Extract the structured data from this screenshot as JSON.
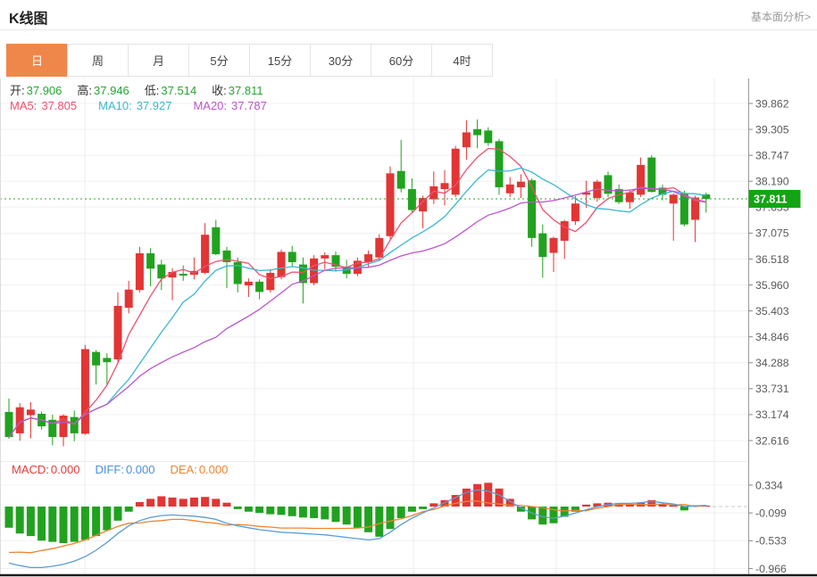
{
  "header": {
    "title": "K线图",
    "link": "基本面分析>"
  },
  "tabs": [
    {
      "id": "day",
      "label": "日",
      "active": true
    },
    {
      "id": "week",
      "label": "周",
      "active": false
    },
    {
      "id": "month",
      "label": "月",
      "active": false
    },
    {
      "id": "5min",
      "label": "5分",
      "active": false
    },
    {
      "id": "15min",
      "label": "15分",
      "active": false
    },
    {
      "id": "30min",
      "label": "30分",
      "active": false
    },
    {
      "id": "60min",
      "label": "60分",
      "active": false
    },
    {
      "id": "4hour",
      "label": "4时",
      "active": false
    }
  ],
  "ohlc_row": [
    {
      "id": "open",
      "label": "开:",
      "value": "37.906"
    },
    {
      "id": "high",
      "label": "高:",
      "value": "37.946"
    },
    {
      "id": "low",
      "label": "低:",
      "value": "37.514"
    },
    {
      "id": "close",
      "label": "收:",
      "value": "37.811"
    }
  ],
  "ma_row": [
    {
      "id": "ma5",
      "label": "MA5:",
      "value": "37.805",
      "color": "#f0506e"
    },
    {
      "id": "ma10",
      "label": "MA10:",
      "value": "37.927",
      "color": "#3bb6d0"
    },
    {
      "id": "ma20",
      "label": "MA20:",
      "value": "37.787",
      "color": "#bb55cc"
    }
  ],
  "macd_row": [
    {
      "id": "macd",
      "label": "MACD:",
      "value": "0.000",
      "color": "#e23c3c"
    },
    {
      "id": "diff",
      "label": "DIFF:",
      "value": "0.000",
      "color": "#4a8fdd"
    },
    {
      "id": "dea",
      "label": "DEA:",
      "value": "0.000",
      "color": "#ee8430"
    }
  ],
  "colors": {
    "up": "#e23535",
    "down": "#21a21f",
    "ma5": "#f0506e",
    "ma10": "#3bb6d0",
    "ma20": "#bb55cc",
    "diff_line": "#5b9bd5",
    "dea_line": "#ed8432",
    "dotted_price_line": "#2ea72e",
    "price_badge_bg": "#13a413",
    "tab_active_bg": "#f0874a",
    "ohlc_value": "#26a532",
    "axis_line": "#999999",
    "grid": "#f0f0f0",
    "vgrid": "#ececec",
    "axis_text": "#595959",
    "bottom_line": "#1a1a1a"
  },
  "chart_data": {
    "type": "candlestick",
    "title": "K线图",
    "panels": [
      "price",
      "macd"
    ],
    "y_axis_labels": [
      "39.862",
      "39.305",
      "38.747",
      "38.190",
      "37.633",
      "37.075",
      "36.518",
      "35.960",
      "35.403",
      "34.846",
      "34.288",
      "33.731",
      "33.174",
      "32.616"
    ],
    "y_axis_top": 39.862,
    "y_axis_step": 0.5575,
    "current_price": 37.811,
    "ma_periods": [
      5,
      10,
      20
    ],
    "candles_ohlc": [
      [
        33.23,
        33.52,
        32.65,
        32.69
      ],
      [
        32.77,
        33.42,
        32.61,
        33.33
      ],
      [
        33.16,
        33.44,
        32.66,
        33.28
      ],
      [
        33.19,
        33.24,
        32.85,
        32.92
      ],
      [
        33.06,
        33.17,
        32.51,
        32.69
      ],
      [
        32.69,
        33.18,
        32.49,
        33.15
      ],
      [
        33.12,
        33.26,
        32.6,
        32.77
      ],
      [
        32.76,
        34.67,
        32.74,
        34.58
      ],
      [
        34.52,
        34.56,
        33.82,
        34.23
      ],
      [
        34.39,
        34.49,
        33.82,
        34.3
      ],
      [
        34.36,
        35.8,
        34.3,
        35.51
      ],
      [
        35.47,
        36.05,
        35.35,
        35.86
      ],
      [
        35.85,
        36.78,
        35.8,
        36.64
      ],
      [
        36.64,
        36.75,
        35.93,
        36.31
      ],
      [
        36.4,
        36.5,
        35.85,
        36.1
      ],
      [
        36.12,
        36.32,
        35.63,
        36.24
      ],
      [
        36.2,
        36.38,
        36.05,
        36.16
      ],
      [
        36.18,
        36.55,
        36.08,
        36.26
      ],
      [
        36.22,
        37.29,
        36.19,
        37.04
      ],
      [
        37.2,
        37.36,
        36.6,
        36.62
      ],
      [
        36.7,
        36.78,
        35.89,
        36.45
      ],
      [
        36.45,
        36.55,
        35.8,
        35.98
      ],
      [
        35.95,
        36.1,
        35.7,
        36.03
      ],
      [
        36.03,
        36.08,
        35.65,
        35.81
      ],
      [
        35.85,
        36.3,
        35.8,
        36.22
      ],
      [
        36.13,
        36.72,
        36.08,
        36.67
      ],
      [
        36.67,
        36.8,
        36.35,
        36.45
      ],
      [
        36.4,
        36.55,
        35.56,
        36.0
      ],
      [
        36.0,
        36.6,
        35.95,
        36.53
      ],
      [
        36.53,
        36.66,
        36.3,
        36.6
      ],
      [
        36.6,
        36.68,
        36.25,
        36.35
      ],
      [
        36.35,
        36.5,
        36.1,
        36.2
      ],
      [
        36.2,
        36.55,
        36.15,
        36.48
      ],
      [
        36.45,
        36.7,
        36.35,
        36.62
      ],
      [
        36.55,
        37.05,
        36.48,
        36.97
      ],
      [
        37.01,
        38.51,
        36.95,
        38.36
      ],
      [
        38.41,
        39.08,
        37.95,
        38.03
      ],
      [
        38.02,
        38.25,
        37.5,
        37.57
      ],
      [
        37.54,
        37.88,
        37.18,
        37.83
      ],
      [
        37.8,
        38.4,
        37.7,
        38.08
      ],
      [
        38.02,
        38.43,
        37.67,
        38.15
      ],
      [
        37.9,
        38.95,
        37.85,
        38.89
      ],
      [
        38.92,
        39.5,
        38.65,
        39.24
      ],
      [
        39.31,
        39.52,
        38.9,
        39.18
      ],
      [
        39.28,
        39.35,
        38.95,
        39.01
      ],
      [
        39.05,
        39.1,
        37.9,
        38.06
      ],
      [
        37.93,
        38.28,
        37.85,
        38.12
      ],
      [
        38.06,
        38.34,
        37.83,
        38.18
      ],
      [
        38.21,
        38.25,
        36.78,
        36.97
      ],
      [
        37.07,
        37.26,
        36.12,
        36.56
      ],
      [
        36.65,
        37.0,
        36.24,
        36.97
      ],
      [
        36.91,
        37.36,
        36.52,
        37.33
      ],
      [
        37.33,
        37.87,
        37.25,
        37.71
      ],
      [
        37.9,
        38.2,
        37.62,
        37.95
      ],
      [
        37.83,
        38.22,
        37.75,
        38.18
      ],
      [
        38.32,
        38.4,
        37.85,
        37.92
      ],
      [
        38.02,
        38.12,
        37.7,
        37.74
      ],
      [
        37.74,
        38.0,
        37.6,
        37.95
      ],
      [
        37.9,
        38.7,
        37.85,
        38.54
      ],
      [
        38.7,
        38.75,
        37.95,
        37.96
      ],
      [
        38.05,
        38.12,
        37.78,
        37.9
      ],
      [
        37.71,
        37.93,
        36.91,
        37.9
      ],
      [
        37.93,
        37.99,
        37.22,
        37.26
      ],
      [
        37.36,
        37.88,
        36.88,
        37.84
      ],
      [
        37.906,
        37.946,
        37.514,
        37.811
      ]
    ],
    "macd_axis_labels": [
      "0.334",
      "-0.099",
      "-0.533",
      "-0.966"
    ],
    "macd_hist": [
      -0.33,
      -0.42,
      -0.46,
      -0.53,
      -0.55,
      -0.57,
      -0.55,
      -0.52,
      -0.46,
      -0.37,
      -0.22,
      -0.08,
      0.07,
      0.12,
      0.16,
      0.14,
      0.12,
      0.14,
      0.15,
      0.12,
      0.06,
      -0.04,
      -0.08,
      -0.1,
      -0.12,
      -0.13,
      -0.15,
      -0.17,
      -0.18,
      -0.2,
      -0.24,
      -0.28,
      -0.33,
      -0.4,
      -0.47,
      -0.35,
      -0.18,
      -0.08,
      -0.04,
      0.05,
      0.1,
      0.18,
      0.28,
      0.35,
      0.37,
      0.28,
      0.12,
      -0.08,
      -0.2,
      -0.28,
      -0.26,
      -0.16,
      -0.08,
      0.03,
      0.05,
      0.06,
      0.04,
      0.03,
      0.06,
      0.1,
      0.04,
      0.03,
      -0.06,
      0.02,
      0.01
    ],
    "macd_diff": [
      -0.88,
      -0.92,
      -0.95,
      -0.95,
      -0.93,
      -0.9,
      -0.85,
      -0.78,
      -0.68,
      -0.56,
      -0.42,
      -0.3,
      -0.22,
      -0.17,
      -0.14,
      -0.13,
      -0.14,
      -0.15,
      -0.17,
      -0.2,
      -0.26,
      -0.3,
      -0.33,
      -0.36,
      -0.38,
      -0.4,
      -0.41,
      -0.42,
      -0.43,
      -0.44,
      -0.46,
      -0.48,
      -0.5,
      -0.52,
      -0.5,
      -0.4,
      -0.28,
      -0.18,
      -0.1,
      -0.02,
      0.06,
      0.14,
      0.22,
      0.26,
      0.24,
      0.18,
      0.08,
      -0.02,
      -0.1,
      -0.16,
      -0.18,
      -0.15,
      -0.1,
      -0.05,
      0.0,
      0.03,
      0.05,
      0.05,
      0.06,
      0.08,
      0.06,
      0.04,
      0.0,
      0.01,
      0.02
    ]
  }
}
